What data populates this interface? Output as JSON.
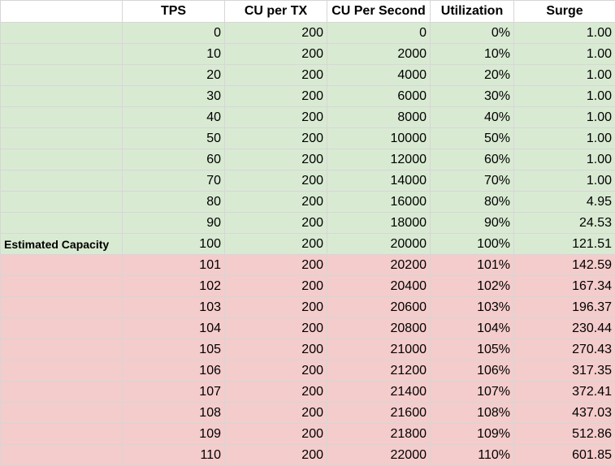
{
  "colors": {
    "header_bg": "#ffffff",
    "under_capacity_bg": "#d9ead3",
    "over_capacity_bg": "#f4cccc",
    "grid_line": "#d6d6d6"
  },
  "sheet": {
    "columns": [
      "",
      "TPS",
      "CU per TX",
      "CU Per Second",
      "Utilization",
      "Surge"
    ],
    "rows": [
      {
        "label": "",
        "tps": "0",
        "cu_per_tx": "200",
        "cu_per_second": "0",
        "utilization": "0%",
        "surge": "1.00",
        "zone": "green"
      },
      {
        "label": "",
        "tps": "10",
        "cu_per_tx": "200",
        "cu_per_second": "2000",
        "utilization": "10%",
        "surge": "1.00",
        "zone": "green"
      },
      {
        "label": "",
        "tps": "20",
        "cu_per_tx": "200",
        "cu_per_second": "4000",
        "utilization": "20%",
        "surge": "1.00",
        "zone": "green"
      },
      {
        "label": "",
        "tps": "30",
        "cu_per_tx": "200",
        "cu_per_second": "6000",
        "utilization": "30%",
        "surge": "1.00",
        "zone": "green"
      },
      {
        "label": "",
        "tps": "40",
        "cu_per_tx": "200",
        "cu_per_second": "8000",
        "utilization": "40%",
        "surge": "1.00",
        "zone": "green"
      },
      {
        "label": "",
        "tps": "50",
        "cu_per_tx": "200",
        "cu_per_second": "10000",
        "utilization": "50%",
        "surge": "1.00",
        "zone": "green"
      },
      {
        "label": "",
        "tps": "60",
        "cu_per_tx": "200",
        "cu_per_second": "12000",
        "utilization": "60%",
        "surge": "1.00",
        "zone": "green"
      },
      {
        "label": "",
        "tps": "70",
        "cu_per_tx": "200",
        "cu_per_second": "14000",
        "utilization": "70%",
        "surge": "1.00",
        "zone": "green"
      },
      {
        "label": "",
        "tps": "80",
        "cu_per_tx": "200",
        "cu_per_second": "16000",
        "utilization": "80%",
        "surge": "4.95",
        "zone": "green"
      },
      {
        "label": "",
        "tps": "90",
        "cu_per_tx": "200",
        "cu_per_second": "18000",
        "utilization": "90%",
        "surge": "24.53",
        "zone": "green"
      },
      {
        "label": "Estimated Capacity",
        "tps": "100",
        "cu_per_tx": "200",
        "cu_per_second": "20000",
        "utilization": "100%",
        "surge": "121.51",
        "zone": "green"
      },
      {
        "label": "",
        "tps": "101",
        "cu_per_tx": "200",
        "cu_per_second": "20200",
        "utilization": "101%",
        "surge": "142.59",
        "zone": "red"
      },
      {
        "label": "",
        "tps": "102",
        "cu_per_tx": "200",
        "cu_per_second": "20400",
        "utilization": "102%",
        "surge": "167.34",
        "zone": "red"
      },
      {
        "label": "",
        "tps": "103",
        "cu_per_tx": "200",
        "cu_per_second": "20600",
        "utilization": "103%",
        "surge": "196.37",
        "zone": "red"
      },
      {
        "label": "",
        "tps": "104",
        "cu_per_tx": "200",
        "cu_per_second": "20800",
        "utilization": "104%",
        "surge": "230.44",
        "zone": "red"
      },
      {
        "label": "",
        "tps": "105",
        "cu_per_tx": "200",
        "cu_per_second": "21000",
        "utilization": "105%",
        "surge": "270.43",
        "zone": "red"
      },
      {
        "label": "",
        "tps": "106",
        "cu_per_tx": "200",
        "cu_per_second": "21200",
        "utilization": "106%",
        "surge": "317.35",
        "zone": "red"
      },
      {
        "label": "",
        "tps": "107",
        "cu_per_tx": "200",
        "cu_per_second": "21400",
        "utilization": "107%",
        "surge": "372.41",
        "zone": "red"
      },
      {
        "label": "",
        "tps": "108",
        "cu_per_tx": "200",
        "cu_per_second": "21600",
        "utilization": "108%",
        "surge": "437.03",
        "zone": "red"
      },
      {
        "label": "",
        "tps": "109",
        "cu_per_tx": "200",
        "cu_per_second": "21800",
        "utilization": "109%",
        "surge": "512.86",
        "zone": "red"
      },
      {
        "label": "",
        "tps": "110",
        "cu_per_tx": "200",
        "cu_per_second": "22000",
        "utilization": "110%",
        "surge": "601.85",
        "zone": "red"
      }
    ]
  }
}
